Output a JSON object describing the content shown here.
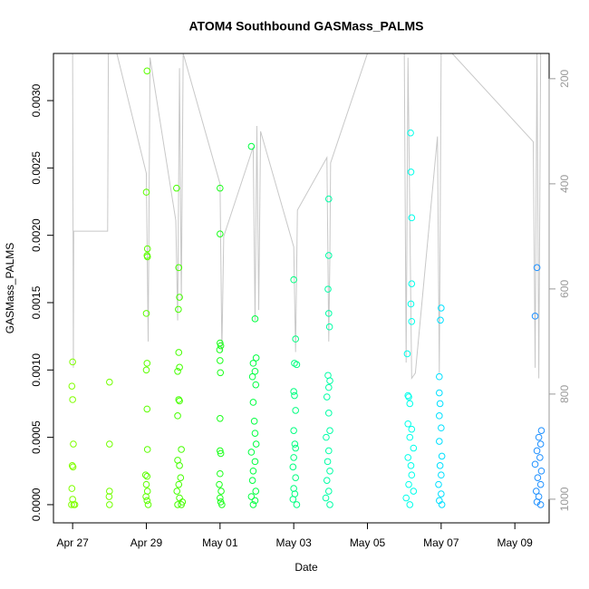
{
  "chart_data": {
    "type": "scatter",
    "title": "ATOM4 Southbound GASMass_PALMS",
    "x_label": "Date",
    "y_label": "GASMass_PALMS",
    "xlim": [
      116.48,
      129.93
    ],
    "xticks": [
      {
        "value": 117,
        "label": "Apr 27"
      },
      {
        "value": 119,
        "label": "Apr 29"
      },
      {
        "value": 121,
        "label": "May 01"
      },
      {
        "value": 123,
        "label": "May 03"
      },
      {
        "value": 125,
        "label": "May 05"
      },
      {
        "value": 127,
        "label": "May 07"
      },
      {
        "value": 129,
        "label": "May 09"
      }
    ],
    "ylim": [
      -0.000135,
      0.00335
    ],
    "yticks": [
      {
        "value": 0,
        "label": "0.0000"
      },
      {
        "value": 0.0005,
        "label": "0.0005"
      },
      {
        "value": 0.001,
        "label": "0.0010"
      },
      {
        "value": 0.0015,
        "label": "0.0015"
      },
      {
        "value": 0.002,
        "label": "0.0020"
      },
      {
        "value": 0.0025,
        "label": "0.0025"
      },
      {
        "value": 0.003,
        "label": "0.0030"
      }
    ],
    "y2lim": [
      1045,
      152
    ],
    "y2ticks": [
      200,
      400,
      600,
      800,
      1000
    ],
    "series": [
      {
        "type": "line",
        "axis": "y2",
        "color": "#c8c8c8",
        "x": [
          117.0,
          117.02,
          117.03,
          117.95,
          117.97,
          118.2,
          119.0,
          119.05,
          119.1,
          119.8,
          119.85,
          119.9,
          119.95,
          120.0,
          121.0,
          121.05,
          121.1,
          121.9,
          121.95,
          122.0,
          122.05,
          122.1,
          123.0,
          123.05,
          123.1,
          123.9,
          123.95,
          123.98,
          124.0,
          125.0,
          126.0,
          126.05,
          126.1,
          126.2,
          126.3,
          126.9,
          126.95,
          127.0,
          127.3,
          129.5,
          129.55,
          129.6,
          129.65,
          129.7
        ],
        "values": [
          152,
          750,
          490,
          490,
          152,
          152,
          380,
          700,
          160,
          470,
          660,
          180,
          620,
          152,
          400,
          720,
          500,
          330,
          660,
          290,
          640,
          300,
          520,
          720,
          450,
          350,
          700,
          540,
          360,
          152,
          152,
          740,
          160,
          770,
          760,
          310,
          760,
          152,
          152,
          320,
          750,
          152,
          770,
          152
        ]
      },
      {
        "color": "#80ff00",
        "x": [
          117.0,
          116.98,
          117.0,
          117.02,
          116.99,
          117.01,
          116.98,
          117.0,
          116.97,
          117.03,
          117.06
        ],
        "values": [
          0.00106,
          0.00088,
          0.00078,
          0.00045,
          0.00029,
          0.00028,
          0.00012,
          4e-05,
          0,
          0,
          0
        ]
      },
      {
        "color": "#73ff00",
        "x": [
          118.0,
          118.0,
          118.0,
          117.99,
          118.0
        ],
        "values": [
          0.00091,
          0.00045,
          0.0001,
          6e-05,
          0
        ]
      },
      {
        "color": "#5cff00",
        "x": [
          119.02,
          119.0,
          119.03,
          119.02,
          119.03,
          119.0,
          119.02,
          119.0,
          119.02,
          119.03,
          118.98,
          119.02,
          119.0,
          119.03,
          118.99,
          119.02,
          119.05
        ],
        "values": [
          0.00322,
          0.00232,
          0.0019,
          0.00185,
          0.00184,
          0.00142,
          0.00105,
          0.001,
          0.00071,
          0.00041,
          0.00022,
          0.00021,
          0.00015,
          0.0001,
          6e-05,
          3e-05,
          0
        ]
      },
      {
        "color": "#45ff00",
        "x": [
          119.82,
          119.88,
          119.9,
          119.87,
          119.88,
          119.9,
          119.85,
          119.88,
          119.9,
          119.85,
          119.95,
          119.85,
          119.9,
          119.93,
          119.88,
          119.83,
          119.9,
          119.98,
          119.85,
          119.95
        ],
        "values": [
          0.00235,
          0.00176,
          0.00154,
          0.00145,
          0.00113,
          0.00102,
          0.00099,
          0.00078,
          0.00077,
          0.00066,
          0.00041,
          0.00033,
          0.00029,
          0.0002,
          0.00015,
          0.0001,
          5e-05,
          2e-05,
          0,
          0
        ]
      },
      {
        "color": "#1aff1a",
        "x": [
          121.0,
          121.0,
          121.0,
          121.02,
          120.99,
          121.0,
          121.01,
          121.0,
          121.0,
          121.02,
          121.0,
          120.98,
          121.03,
          121.0,
          121.02,
          121.05
        ],
        "values": [
          0.00235,
          0.00201,
          0.0012,
          0.00118,
          0.00115,
          0.00107,
          0.00098,
          0.00064,
          0.0004,
          0.00038,
          0.00023,
          0.00015,
          0.0001,
          5e-05,
          2e-05,
          0
        ]
      },
      {
        "color": "#00ff40",
        "x": [
          121.85,
          121.95,
          121.98,
          121.9,
          121.95,
          121.88,
          121.97,
          121.9,
          121.93,
          121.95,
          121.98,
          121.85,
          121.95,
          121.9,
          121.88,
          121.97,
          121.85,
          121.95,
          121.9
        ],
        "values": [
          0.00266,
          0.00138,
          0.00109,
          0.00105,
          0.00099,
          0.00095,
          0.00089,
          0.00076,
          0.00062,
          0.00053,
          0.00045,
          0.00039,
          0.00032,
          0.00025,
          0.00018,
          0.0001,
          6e-05,
          3e-05,
          0
        ]
      },
      {
        "color": "#00ff80",
        "x": [
          123.0,
          123.05,
          123.02,
          123.08,
          123.0,
          123.02,
          123.05,
          123.0,
          123.03,
          123.05,
          123.0,
          122.98,
          123.05,
          123.0,
          123.03,
          122.98,
          123.08
        ],
        "values": [
          0.00167,
          0.00123,
          0.00105,
          0.00104,
          0.00084,
          0.00081,
          0.0007,
          0.00055,
          0.00045,
          0.00042,
          0.00035,
          0.00028,
          0.0002,
          0.00012,
          8e-05,
          4e-05,
          0
        ]
      },
      {
        "color": "#00ffa6",
        "x": [
          123.95,
          123.95,
          123.93,
          123.95,
          123.97,
          123.93,
          123.98,
          123.95,
          123.9,
          123.95,
          123.98,
          123.88,
          123.95,
          123.92,
          123.98,
          123.9,
          123.95,
          123.87,
          123.98
        ],
        "values": [
          0.00227,
          0.00185,
          0.0016,
          0.00142,
          0.00132,
          0.00096,
          0.00092,
          0.00087,
          0.0008,
          0.00068,
          0.00055,
          0.0005,
          0.0004,
          0.00032,
          0.00025,
          0.00018,
          0.0001,
          5e-05,
          0
        ]
      },
      {
        "color": "#00ffea",
        "x": [
          126.17,
          126.18,
          126.2,
          126.2,
          126.18,
          126.2,
          126.08,
          126.1,
          126.12,
          126.15,
          126.1,
          126.2,
          126.15,
          126.25,
          126.1,
          126.18,
          126.2,
          126.12,
          126.25,
          126.05,
          126.15
        ],
        "values": [
          0.00276,
          0.00247,
          0.00213,
          0.00164,
          0.00149,
          0.00136,
          0.00112,
          0.00081,
          0.0008,
          0.00075,
          0.0006,
          0.00056,
          0.0005,
          0.00042,
          0.00035,
          0.00029,
          0.00022,
          0.00015,
          0.0001,
          5e-05,
          0
        ]
      },
      {
        "color": "#00e0ff",
        "x": [
          127.0,
          126.98,
          126.95,
          126.95,
          126.97,
          126.95,
          127.0,
          126.95,
          127.02,
          126.97,
          127.0,
          126.93,
          127.0,
          126.95,
          127.02
        ],
        "values": [
          0.00146,
          0.00137,
          0.00095,
          0.00083,
          0.00075,
          0.00066,
          0.00057,
          0.00047,
          0.00036,
          0.00029,
          0.00022,
          0.00015,
          8e-05,
          3e-05,
          0
        ]
      },
      {
        "color": "#1e90ff",
        "x": [
          129.6,
          129.55,
          129.72,
          129.65,
          129.7,
          129.6,
          129.68,
          129.55,
          129.72,
          129.62,
          129.7,
          129.58,
          129.65,
          129.6,
          129.7
        ],
        "values": [
          0.00176,
          0.0014,
          0.00055,
          0.0005,
          0.00045,
          0.0004,
          0.00035,
          0.0003,
          0.00025,
          0.0002,
          0.00015,
          0.0001,
          6e-05,
          2e-05,
          0
        ]
      }
    ]
  }
}
